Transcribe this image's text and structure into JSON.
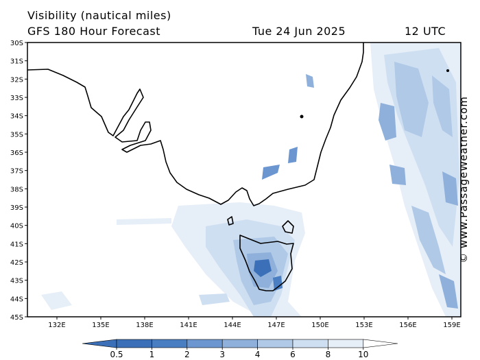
{
  "header": {
    "title": "Visibility (nautical miles)",
    "subtitle": "GFS 180 Hour Forecast",
    "date": "Tue 24 Jun 2025",
    "time": "12 UTC"
  },
  "credit": "© www.PassageWeather.com",
  "map": {
    "lat_labels": [
      "30S",
      "31S",
      "32S",
      "33S",
      "34S",
      "35S",
      "36S",
      "37S",
      "38S",
      "39S",
      "40S",
      "41S",
      "42S",
      "43S",
      "44S",
      "45S"
    ],
    "lon_labels": [
      "132E",
      "135E",
      "138E",
      "141E",
      "144E",
      "147E",
      "150E",
      "153E",
      "156E",
      "159E"
    ]
  },
  "legend": {
    "labels": [
      "0.5",
      "1",
      "2",
      "3",
      "4",
      "6",
      "8",
      "10"
    ],
    "colors": [
      "#3b6fb7",
      "#4a7ec2",
      "#6b96cf",
      "#8eb0da",
      "#b0c9e6",
      "#cfdff2",
      "#e6eef8",
      "#ffffff"
    ]
  },
  "colors": {
    "low_visibility": "#3b6fb7",
    "moderate": "#8eb0da",
    "high": "#e6eef8",
    "coastline": "#000000"
  }
}
